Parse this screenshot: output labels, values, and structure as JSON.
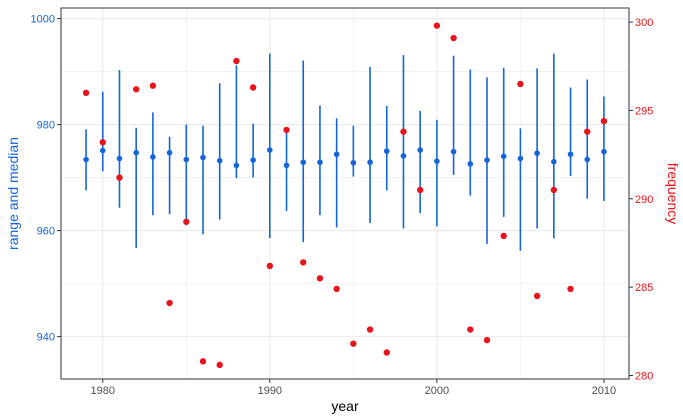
{
  "chart_data": {
    "type": "scatter",
    "xlabel": "year",
    "ylabel_left": "range and median",
    "ylabel_right": "frequency",
    "xlim": [
      1977.5,
      2011.5
    ],
    "ylim_left": [
      932,
      1002
    ],
    "ylim_right": [
      279.8,
      300.8
    ],
    "x_ticks": [
      1980,
      1990,
      2000,
      2010
    ],
    "y_left_ticks": [
      940,
      960,
      980,
      1000
    ],
    "y_right_ticks": [
      280,
      285,
      290,
      295,
      300
    ],
    "grid": true,
    "colors": {
      "range": "#1565d8",
      "frequency": "#e8141b",
      "left_axis": "#1565d8",
      "right_axis": "#e8141b",
      "grid": "#ebebeb"
    },
    "range_series": {
      "name": "range and median",
      "x": [
        1979,
        1980,
        1981,
        1982,
        1983,
        1984,
        1985,
        1986,
        1987,
        1988,
        1989,
        1990,
        1991,
        1992,
        1993,
        1994,
        1995,
        1996,
        1997,
        1998,
        1999,
        2000,
        2001,
        2002,
        2003,
        2004,
        2005,
        2006,
        2007,
        2008,
        2009,
        2010
      ],
      "median": [
        973.4,
        975.1,
        973.6,
        974.7,
        973.9,
        974.7,
        973.4,
        973.8,
        973.2,
        972.3,
        973.3,
        975.2,
        972.3,
        972.9,
        972.9,
        974.4,
        972.8,
        972.9,
        975.0,
        974.1,
        975.2,
        973.1,
        974.9,
        972.6,
        973.3,
        974.0,
        973.6,
        974.6,
        973.0,
        974.4,
        973.4,
        974.9
      ],
      "low": [
        967.6,
        971.2,
        964.3,
        956.7,
        962.9,
        963.1,
        961.0,
        959.3,
        962.1,
        969.9,
        970.0,
        958.6,
        963.7,
        957.8,
        962.9,
        960.6,
        970.2,
        961.4,
        967.6,
        960.4,
        963.3,
        960.8,
        970.5,
        966.6,
        957.5,
        962.6,
        956.2,
        960.4,
        958.5,
        970.3,
        966.0,
        965.6
      ],
      "high": [
        979.1,
        986.2,
        990.3,
        979.4,
        982.3,
        977.7,
        980.0,
        979.8,
        987.8,
        991.2,
        980.2,
        993.4,
        978.6,
        992.1,
        983.6,
        981.2,
        979.8,
        990.9,
        983.5,
        993.1,
        982.6,
        980.9,
        993.0,
        990.4,
        988.9,
        990.7,
        979.3,
        990.6,
        993.4,
        987.0,
        988.5,
        985.3
      ]
    },
    "frequency_series": {
      "name": "frequency",
      "x": [
        1979,
        1980,
        1981,
        1982,
        1983,
        1984,
        1985,
        1986,
        1987,
        1988,
        1989,
        1990,
        1991,
        1992,
        1993,
        1994,
        1995,
        1996,
        1997,
        1998,
        1999,
        2000,
        2001,
        2002,
        2003,
        2004,
        2005,
        2006,
        2007,
        2008,
        2009,
        2010
      ],
      "y": [
        296.0,
        293.2,
        291.2,
        296.2,
        296.4,
        284.1,
        288.7,
        280.8,
        280.6,
        297.8,
        296.3,
        286.2,
        293.9,
        286.4,
        285.5,
        284.9,
        281.8,
        282.6,
        281.3,
        293.8,
        290.5,
        299.8,
        299.1,
        282.6,
        282.0,
        287.9,
        296.5,
        284.5,
        290.5,
        284.9,
        293.8,
        294.4
      ]
    }
  }
}
